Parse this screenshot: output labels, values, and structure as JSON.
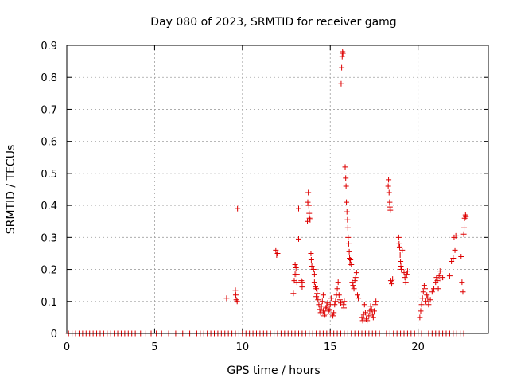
{
  "chart_data": {
    "type": "scatter",
    "title": "Day 080 of 2023, SRMTID for receiver gamg",
    "xlabel": "GPS time / hours",
    "ylabel": "SRMTID / TECUs",
    "xlim": [
      0,
      24
    ],
    "ylim": [
      0,
      0.9
    ],
    "x_ticks": [
      0,
      5,
      10,
      15,
      20
    ],
    "y_ticks": [
      0,
      0.1,
      0.2,
      0.3,
      0.4,
      0.5,
      0.6,
      0.7,
      0.8,
      0.9
    ],
    "x_tick_labels": [
      "0",
      "5",
      "10",
      "15",
      "20"
    ],
    "y_tick_labels": [
      "0",
      "0.1",
      "0.2",
      "0.3",
      "0.4",
      "0.5",
      "0.6",
      "0.7",
      "0.8",
      "0.9"
    ],
    "grid": true,
    "marker": "+",
    "color": "#dd0000",
    "series": [
      {
        "name": "SRMTID",
        "points": [
          [
            0.1,
            0
          ],
          [
            0.3,
            0
          ],
          [
            0.5,
            0
          ],
          [
            0.7,
            0
          ],
          [
            0.9,
            0
          ],
          [
            1.1,
            0
          ],
          [
            1.3,
            0
          ],
          [
            1.5,
            0
          ],
          [
            1.7,
            0
          ],
          [
            1.9,
            0
          ],
          [
            2.1,
            0
          ],
          [
            2.3,
            0
          ],
          [
            2.5,
            0
          ],
          [
            2.7,
            0
          ],
          [
            2.9,
            0
          ],
          [
            3.1,
            0
          ],
          [
            3.3,
            0
          ],
          [
            3.5,
            0
          ],
          [
            3.7,
            0
          ],
          [
            3.9,
            0
          ],
          [
            4.2,
            0
          ],
          [
            4.5,
            0
          ],
          [
            4.8,
            0
          ],
          [
            5.1,
            0
          ],
          [
            5.4,
            0
          ],
          [
            5.8,
            0
          ],
          [
            6.2,
            0
          ],
          [
            6.6,
            0
          ],
          [
            7.0,
            0
          ],
          [
            7.4,
            0
          ],
          [
            7.6,
            0
          ],
          [
            7.8,
            0
          ],
          [
            8.0,
            0
          ],
          [
            8.2,
            0
          ],
          [
            8.4,
            0
          ],
          [
            8.6,
            0
          ],
          [
            8.8,
            0
          ],
          [
            9.0,
            0
          ],
          [
            9.2,
            0
          ],
          [
            9.4,
            0
          ],
          [
            9.6,
            0
          ],
          [
            9.8,
            0
          ],
          [
            10.0,
            0
          ],
          [
            10.2,
            0
          ],
          [
            10.4,
            0
          ],
          [
            10.6,
            0
          ],
          [
            10.8,
            0
          ],
          [
            11.0,
            0
          ],
          [
            11.2,
            0
          ],
          [
            11.4,
            0
          ],
          [
            11.6,
            0
          ],
          [
            11.8,
            0
          ],
          [
            12.0,
            0
          ],
          [
            12.2,
            0
          ],
          [
            12.4,
            0
          ],
          [
            12.6,
            0
          ],
          [
            12.8,
            0
          ],
          [
            13.0,
            0
          ],
          [
            13.2,
            0
          ],
          [
            13.4,
            0
          ],
          [
            13.6,
            0
          ],
          [
            13.8,
            0
          ],
          [
            14.0,
            0
          ],
          [
            14.2,
            0
          ],
          [
            14.4,
            0
          ],
          [
            14.6,
            0
          ],
          [
            14.8,
            0
          ],
          [
            15.0,
            0
          ],
          [
            15.2,
            0
          ],
          [
            15.4,
            0
          ],
          [
            15.6,
            0
          ],
          [
            15.8,
            0
          ],
          [
            16.0,
            0
          ],
          [
            16.2,
            0
          ],
          [
            16.4,
            0
          ],
          [
            16.6,
            0
          ],
          [
            16.8,
            0
          ],
          [
            17.0,
            0
          ],
          [
            17.2,
            0
          ],
          [
            17.4,
            0
          ],
          [
            17.6,
            0
          ],
          [
            17.8,
            0
          ],
          [
            18.0,
            0
          ],
          [
            18.2,
            0
          ],
          [
            18.4,
            0
          ],
          [
            18.6,
            0
          ],
          [
            18.8,
            0
          ],
          [
            19.0,
            0
          ],
          [
            19.2,
            0
          ],
          [
            19.4,
            0
          ],
          [
            19.6,
            0
          ],
          [
            19.8,
            0
          ],
          [
            20.0,
            0
          ],
          [
            20.2,
            0
          ],
          [
            20.4,
            0
          ],
          [
            20.6,
            0
          ],
          [
            20.8,
            0
          ],
          [
            21.0,
            0
          ],
          [
            21.2,
            0
          ],
          [
            21.4,
            0
          ],
          [
            21.6,
            0
          ],
          [
            21.8,
            0
          ],
          [
            22.0,
            0
          ],
          [
            22.2,
            0
          ],
          [
            22.4,
            0
          ],
          [
            22.6,
            0
          ],
          [
            9.1,
            0.11
          ],
          [
            9.6,
            0.135
          ],
          [
            9.62,
            0.12
          ],
          [
            9.65,
            0.105
          ],
          [
            9.7,
            0.1
          ],
          [
            9.72,
            0.39
          ],
          [
            11.9,
            0.26
          ],
          [
            11.95,
            0.245
          ],
          [
            12.0,
            0.25
          ],
          [
            12.9,
            0.125
          ],
          [
            12.95,
            0.165
          ],
          [
            13.0,
            0.185
          ],
          [
            13.0,
            0.215
          ],
          [
            13.05,
            0.205
          ],
          [
            13.1,
            0.185
          ],
          [
            13.1,
            0.16
          ],
          [
            13.2,
            0.39
          ],
          [
            13.2,
            0.295
          ],
          [
            13.35,
            0.165
          ],
          [
            13.4,
            0.145
          ],
          [
            13.4,
            0.16
          ],
          [
            13.7,
            0.35
          ],
          [
            13.72,
            0.41
          ],
          [
            13.75,
            0.44
          ],
          [
            13.78,
            0.4
          ],
          [
            13.8,
            0.375
          ],
          [
            13.82,
            0.36
          ],
          [
            13.85,
            0.355
          ],
          [
            13.9,
            0.25
          ],
          [
            13.92,
            0.23
          ],
          [
            13.95,
            0.21
          ],
          [
            14.05,
            0.2
          ],
          [
            14.1,
            0.185
          ],
          [
            14.1,
            0.16
          ],
          [
            14.15,
            0.145
          ],
          [
            14.2,
            0.14
          ],
          [
            14.2,
            0.115
          ],
          [
            14.25,
            0.125
          ],
          [
            14.3,
            0.105
          ],
          [
            14.35,
            0.09
          ],
          [
            14.4,
            0.075
          ],
          [
            14.45,
            0.065
          ],
          [
            14.5,
            0.085
          ],
          [
            14.55,
            0.1
          ],
          [
            14.6,
            0.12
          ],
          [
            14.6,
            0.07
          ],
          [
            14.65,
            0.055
          ],
          [
            14.7,
            0.06
          ],
          [
            14.75,
            0.08
          ],
          [
            14.8,
            0.085
          ],
          [
            14.85,
            0.095
          ],
          [
            14.9,
            0.07
          ],
          [
            14.95,
            0.075
          ],
          [
            15.0,
            0.09
          ],
          [
            15.05,
            0.11
          ],
          [
            15.1,
            0.06
          ],
          [
            15.15,
            0.055
          ],
          [
            15.2,
            0.065
          ],
          [
            15.25,
            0.09
          ],
          [
            15.3,
            0.1
          ],
          [
            15.35,
            0.12
          ],
          [
            15.4,
            0.14
          ],
          [
            15.45,
            0.16
          ],
          [
            15.5,
            0.12
          ],
          [
            15.55,
            0.105
          ],
          [
            15.6,
            0.095
          ],
          [
            15.62,
            0.78
          ],
          [
            15.65,
            0.83
          ],
          [
            15.68,
            0.865
          ],
          [
            15.7,
            0.88
          ],
          [
            15.72,
            0.875
          ],
          [
            15.75,
            0.09
          ],
          [
            15.78,
            0.08
          ],
          [
            15.8,
            0.1
          ],
          [
            15.85,
            0.52
          ],
          [
            15.88,
            0.485
          ],
          [
            15.9,
            0.46
          ],
          [
            15.92,
            0.41
          ],
          [
            15.95,
            0.38
          ],
          [
            15.98,
            0.355
          ],
          [
            16.0,
            0.33
          ],
          [
            16.02,
            0.3
          ],
          [
            16.05,
            0.28
          ],
          [
            16.08,
            0.255
          ],
          [
            16.1,
            0.235
          ],
          [
            16.12,
            0.22
          ],
          [
            16.15,
            0.23
          ],
          [
            16.2,
            0.215
          ],
          [
            16.25,
            0.16
          ],
          [
            16.3,
            0.15
          ],
          [
            16.35,
            0.14
          ],
          [
            16.4,
            0.165
          ],
          [
            16.45,
            0.175
          ],
          [
            16.5,
            0.19
          ],
          [
            16.55,
            0.12
          ],
          [
            16.6,
            0.11
          ],
          [
            16.8,
            0.05
          ],
          [
            16.85,
            0.04
          ],
          [
            16.9,
            0.06
          ],
          [
            16.95,
            0.09
          ],
          [
            17.0,
            0.065
          ],
          [
            17.05,
            0.045
          ],
          [
            17.1,
            0.04
          ],
          [
            17.2,
            0.055
          ],
          [
            17.25,
            0.07
          ],
          [
            17.3,
            0.085
          ],
          [
            17.35,
            0.075
          ],
          [
            17.4,
            0.06
          ],
          [
            17.45,
            0.05
          ],
          [
            17.5,
            0.07
          ],
          [
            17.55,
            0.09
          ],
          [
            17.6,
            0.1
          ],
          [
            18.3,
            0.46
          ],
          [
            18.32,
            0.48
          ],
          [
            18.35,
            0.44
          ],
          [
            18.38,
            0.41
          ],
          [
            18.4,
            0.395
          ],
          [
            18.42,
            0.385
          ],
          [
            18.45,
            0.165
          ],
          [
            18.5,
            0.155
          ],
          [
            18.55,
            0.17
          ],
          [
            18.9,
            0.3
          ],
          [
            18.92,
            0.28
          ],
          [
            18.95,
            0.27
          ],
          [
            18.98,
            0.245
          ],
          [
            19.0,
            0.225
          ],
          [
            19.02,
            0.21
          ],
          [
            19.05,
            0.2
          ],
          [
            19.1,
            0.26
          ],
          [
            19.2,
            0.19
          ],
          [
            19.25,
            0.175
          ],
          [
            19.3,
            0.16
          ],
          [
            19.35,
            0.185
          ],
          [
            19.4,
            0.195
          ],
          [
            20.1,
            0.05
          ],
          [
            20.15,
            0.07
          ],
          [
            20.2,
            0.09
          ],
          [
            20.25,
            0.11
          ],
          [
            20.3,
            0.13
          ],
          [
            20.35,
            0.15
          ],
          [
            20.4,
            0.14
          ],
          [
            20.45,
            0.1
          ],
          [
            20.5,
            0.12
          ],
          [
            20.55,
            0.11
          ],
          [
            20.6,
            0.09
          ],
          [
            20.7,
            0.105
          ],
          [
            20.8,
            0.13
          ],
          [
            20.9,
            0.14
          ],
          [
            21.0,
            0.16
          ],
          [
            21.05,
            0.175
          ],
          [
            21.1,
            0.165
          ],
          [
            21.15,
            0.14
          ],
          [
            21.2,
            0.18
          ],
          [
            21.25,
            0.195
          ],
          [
            21.3,
            0.17
          ],
          [
            21.4,
            0.175
          ],
          [
            21.8,
            0.18
          ],
          [
            21.9,
            0.225
          ],
          [
            22.0,
            0.235
          ],
          [
            22.05,
            0.3
          ],
          [
            22.1,
            0.26
          ],
          [
            22.15,
            0.305
          ],
          [
            22.45,
            0.24
          ],
          [
            22.5,
            0.16
          ],
          [
            22.55,
            0.13
          ],
          [
            22.6,
            0.31
          ],
          [
            22.62,
            0.33
          ],
          [
            22.65,
            0.36
          ],
          [
            22.7,
            0.37
          ],
          [
            22.72,
            0.365
          ]
        ]
      }
    ]
  }
}
